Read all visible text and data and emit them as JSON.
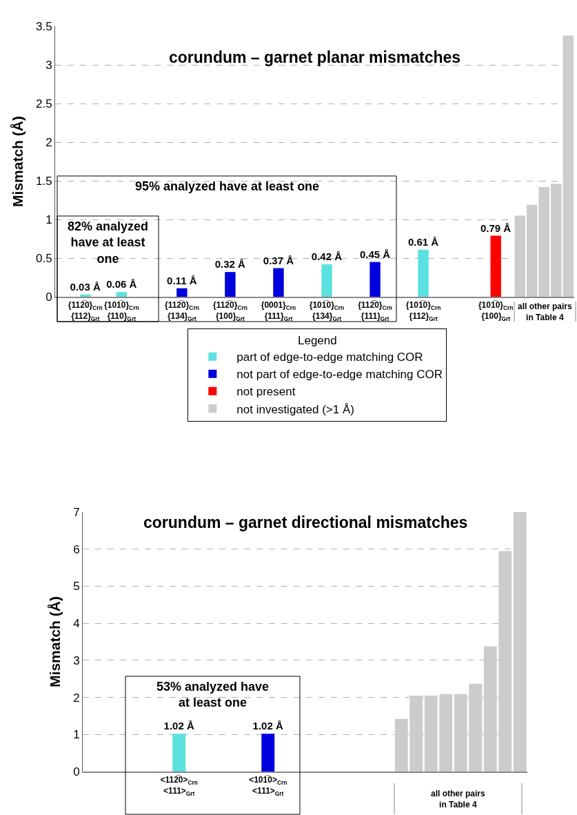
{
  "chart_data": [
    {
      "type": "bar",
      "title": "corundum – garnet planar mismatches",
      "ylabel": "Mismatch (Å)",
      "legend_title": "Legend",
      "legend": "bottom",
      "grid": "y",
      "categories": [
        null,
        null,
        "{112̅0}$_{Crn}$\n{112}$_{Grt}$",
        null,
        null,
        "{101̅0}$_{Crn}$\n{110}$_{Grt}$",
        null,
        null,
        null,
        null,
        "{112̅0}$_{Crn}$\n{134}$_{Grt}$",
        null,
        null,
        null,
        "{112̅0}$_{Crn}$\n{100}$_{Grt}$",
        null,
        null,
        null,
        "{0001}$_{Crn}$\n{111}$_{Grt}$",
        null,
        null,
        null,
        "{101̅0}$_{Crn}$\n{134}$_{Grt}$",
        null,
        null,
        null,
        "{112̅0}$_{Crn}$\n{111}$_{Grt}$",
        null,
        null,
        null,
        "{101̅0}$_{Crn}$\n{112}$_{Grt}$",
        null,
        null,
        null,
        null,
        null,
        "{101̅0}$_{Crn}$\n{100}$_{Grt}$",
        null,
        null,
        null,
        null,
        null,
        null
      ],
      "ylim": [
        0,
        3.5
      ],
      "yticks": [
        0,
        0.5,
        1,
        1.5,
        2,
        2.5,
        3,
        3.5
      ],
      "series": [
        {
          "name": "part of edge-to-edge matching COR",
          "color": "#5ce1e1",
          "values": [
            null,
            null,
            0.03,
            null,
            null,
            0.06,
            null,
            null,
            null,
            null,
            null,
            null,
            null,
            null,
            null,
            null,
            null,
            null,
            null,
            null,
            null,
            null,
            0.42,
            null,
            null,
            null,
            null,
            null,
            null,
            null,
            0.61,
            null,
            null,
            null,
            null,
            null,
            null,
            null,
            null,
            null,
            null,
            null,
            null
          ],
          "value_labels": [
            null,
            null,
            "0.03 Å",
            null,
            null,
            "0.06 Å",
            null,
            null,
            null,
            null,
            null,
            null,
            null,
            null,
            null,
            null,
            null,
            null,
            null,
            null,
            null,
            null,
            "0.42 Å",
            null,
            null,
            null,
            null,
            null,
            null,
            null,
            "0.61 Å",
            null,
            null,
            null,
            null,
            null,
            null,
            null,
            null,
            null,
            null,
            null,
            null
          ]
        },
        {
          "name": "not part of edge-to-edge matching COR",
          "color": "#0000dd",
          "values": [
            null,
            null,
            null,
            null,
            null,
            null,
            null,
            null,
            null,
            null,
            0.11,
            null,
            null,
            null,
            0.32,
            null,
            null,
            null,
            0.37,
            null,
            null,
            null,
            null,
            null,
            null,
            null,
            0.45,
            null,
            null,
            null,
            null,
            null,
            null,
            null,
            null,
            null,
            null,
            null,
            null,
            null,
            null,
            null,
            null
          ],
          "value_labels": [
            null,
            null,
            null,
            null,
            null,
            null,
            null,
            null,
            null,
            null,
            "0.11 Å",
            null,
            null,
            null,
            "0.32 Å",
            null,
            null,
            null,
            "0.37 Å",
            null,
            null,
            null,
            null,
            null,
            null,
            null,
            "0.45 Å",
            null,
            null,
            null,
            null,
            null,
            null,
            null,
            null,
            null,
            null,
            null,
            null,
            null,
            null,
            null,
            null
          ]
        },
        {
          "name": "not present",
          "color": "#ff0000",
          "values": [
            null,
            null,
            null,
            null,
            null,
            null,
            null,
            null,
            null,
            null,
            null,
            null,
            null,
            null,
            null,
            null,
            null,
            null,
            null,
            null,
            null,
            null,
            null,
            null,
            null,
            null,
            null,
            null,
            null,
            null,
            null,
            null,
            null,
            null,
            null,
            null,
            0.79,
            null,
            null,
            null,
            null,
            null,
            null
          ],
          "value_labels": [
            null,
            null,
            null,
            null,
            null,
            null,
            null,
            null,
            null,
            null,
            null,
            null,
            null,
            null,
            null,
            null,
            null,
            null,
            null,
            null,
            null,
            null,
            null,
            null,
            null,
            null,
            null,
            null,
            null,
            null,
            null,
            null,
            null,
            null,
            null,
            null,
            "0.79 Å",
            null,
            null,
            null,
            null,
            null,
            null
          ]
        },
        {
          "name": "not investigated (>1 Å)",
          "color": "#cccccc",
          "values": [
            null,
            null,
            null,
            null,
            null,
            null,
            null,
            null,
            null,
            null,
            null,
            null,
            null,
            null,
            null,
            null,
            null,
            null,
            null,
            null,
            null,
            null,
            null,
            null,
            null,
            null,
            null,
            null,
            null,
            null,
            null,
            null,
            null,
            null,
            null,
            null,
            null,
            null,
            1.05,
            1.19,
            1.42,
            1.46,
            3.38
          ]
        }
      ],
      "annotations": [
        "95% analyzed have at least one",
        "82% analyzed have at least one",
        "all other pairs in Table 4"
      ]
    },
    {
      "type": "bar",
      "title": "corundum – garnet directional mismatches",
      "ylabel": "Mismatch (Å)",
      "grid": "y",
      "categories": [
        null,
        null,
        null,
        null,
        null,
        null,
        "<112̅0>$_{Crn}$\n<111>$_{Grt}$",
        null,
        null,
        null,
        null,
        null,
        "<101̅0>$_{Crn}$\n<111>$_{Grt}$",
        null,
        null,
        null,
        null,
        null,
        null,
        null,
        null,
        null,
        null,
        null,
        null,
        null,
        null,
        null,
        null,
        null
      ],
      "ylim": [
        0,
        7
      ],
      "yticks": [
        0,
        1,
        2,
        3,
        4,
        5,
        6,
        7
      ],
      "series": [
        {
          "color": "#5ce1e1",
          "values": [
            null,
            null,
            null,
            null,
            null,
            null,
            1.02,
            null,
            null,
            null,
            null,
            null,
            null,
            null,
            null,
            null,
            null,
            null,
            null,
            null,
            null,
            null,
            null,
            null,
            null,
            null,
            null,
            null,
            null,
            null
          ],
          "value_labels": [
            null,
            null,
            null,
            null,
            null,
            null,
            "1.02 Å",
            null,
            null,
            null,
            null,
            null,
            null,
            null,
            null,
            null,
            null,
            null,
            null,
            null,
            null,
            null,
            null,
            null,
            null,
            null,
            null,
            null,
            null,
            null
          ]
        },
        {
          "color": "#0000dd",
          "values": [
            null,
            null,
            null,
            null,
            null,
            null,
            null,
            null,
            null,
            null,
            null,
            null,
            1.02,
            null,
            null,
            null,
            null,
            null,
            null,
            null,
            null,
            null,
            null,
            null,
            null,
            null,
            null,
            null,
            null,
            null
          ],
          "value_labels": [
            null,
            null,
            null,
            null,
            null,
            null,
            null,
            null,
            null,
            null,
            null,
            null,
            "1.02 Å",
            null,
            null,
            null,
            null,
            null,
            null,
            null,
            null,
            null,
            null,
            null,
            null,
            null,
            null,
            null,
            null,
            null
          ]
        },
        {
          "color": "#cccccc",
          "values": [
            null,
            null,
            null,
            null,
            null,
            null,
            null,
            null,
            null,
            null,
            null,
            null,
            null,
            null,
            null,
            null,
            null,
            null,
            null,
            null,
            null,
            1.42,
            2.05,
            2.05,
            2.09,
            2.09,
            2.37,
            3.38,
            5.95,
            7.0
          ]
        }
      ],
      "annotations": [
        "53% analyzed have at least one",
        "all other pairs in Table 4"
      ]
    }
  ]
}
